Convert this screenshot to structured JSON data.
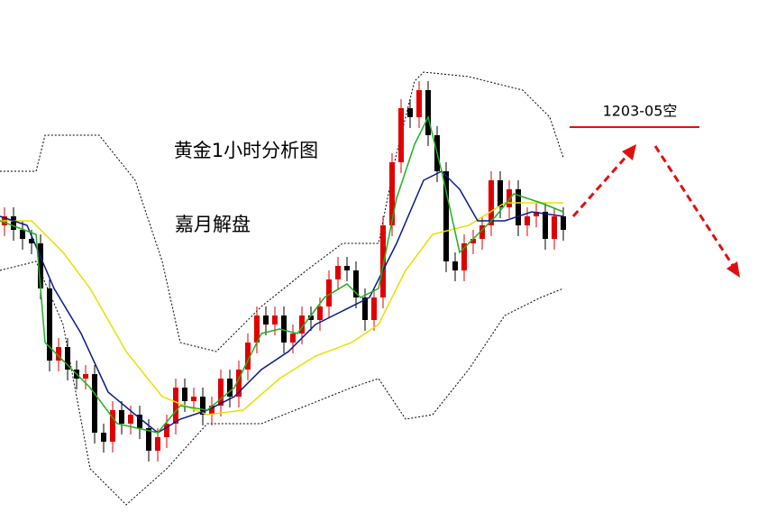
{
  "chart_data": {
    "type": "candlestick",
    "title": "黄金1小时分析图",
    "subtitle": "嘉月解盘",
    "annotation": "1203-05空",
    "up_color": "#e00000",
    "down_color": "#000000",
    "ylim": [
      0,
      568
    ],
    "open": [
      318,
      328,
      313,
      303,
      298,
      248,
      168,
      183,
      158,
      148,
      153,
      88,
      78,
      113,
      98,
      108,
      93,
      68,
      83,
      98,
      138,
      123,
      128,
      108,
      118,
      148,
      128,
      158,
      188,
      218,
      208,
      218,
      188,
      198,
      218,
      213,
      228,
      258,
      273,
      268,
      238,
      213,
      238,
      318,
      388,
      448,
      438,
      468,
      418,
      378,
      278,
      268,
      298,
      303,
      318,
      368,
      338,
      358,
      318,
      328,
      333,
      303,
      328
    ],
    "high": [
      338,
      338,
      323,
      313,
      308,
      258,
      193,
      193,
      168,
      163,
      163,
      98,
      123,
      123,
      118,
      118,
      103,
      93,
      108,
      148,
      148,
      138,
      138,
      128,
      158,
      158,
      168,
      198,
      228,
      228,
      228,
      228,
      208,
      228,
      228,
      238,
      268,
      283,
      283,
      278,
      248,
      248,
      328,
      398,
      458,
      458,
      478,
      478,
      428,
      388,
      288,
      308,
      313,
      328,
      378,
      378,
      368,
      368,
      338,
      343,
      343,
      338,
      338
    ],
    "low": [
      306,
      301,
      291,
      286,
      236,
      156,
      156,
      146,
      136,
      136,
      76,
      66,
      66,
      86,
      86,
      81,
      56,
      56,
      71,
      86,
      111,
      111,
      96,
      96,
      106,
      116,
      116,
      146,
      176,
      196,
      196,
      176,
      176,
      186,
      201,
      201,
      216,
      246,
      256,
      226,
      201,
      201,
      226,
      306,
      376,
      426,
      426,
      406,
      366,
      266,
      256,
      256,
      286,
      291,
      306,
      326,
      326,
      306,
      306,
      316,
      291,
      291,
      301
    ],
    "close": [
      328,
      313,
      303,
      298,
      248,
      168,
      183,
      158,
      148,
      153,
      88,
      78,
      113,
      98,
      108,
      93,
      68,
      83,
      98,
      138,
      123,
      128,
      108,
      118,
      148,
      128,
      158,
      188,
      218,
      208,
      218,
      188,
      198,
      218,
      213,
      228,
      258,
      273,
      268,
      238,
      213,
      238,
      318,
      388,
      448,
      438,
      468,
      418,
      378,
      278,
      268,
      298,
      303,
      318,
      368,
      338,
      358,
      318,
      328,
      333,
      303,
      328,
      313
    ]
  }
}
